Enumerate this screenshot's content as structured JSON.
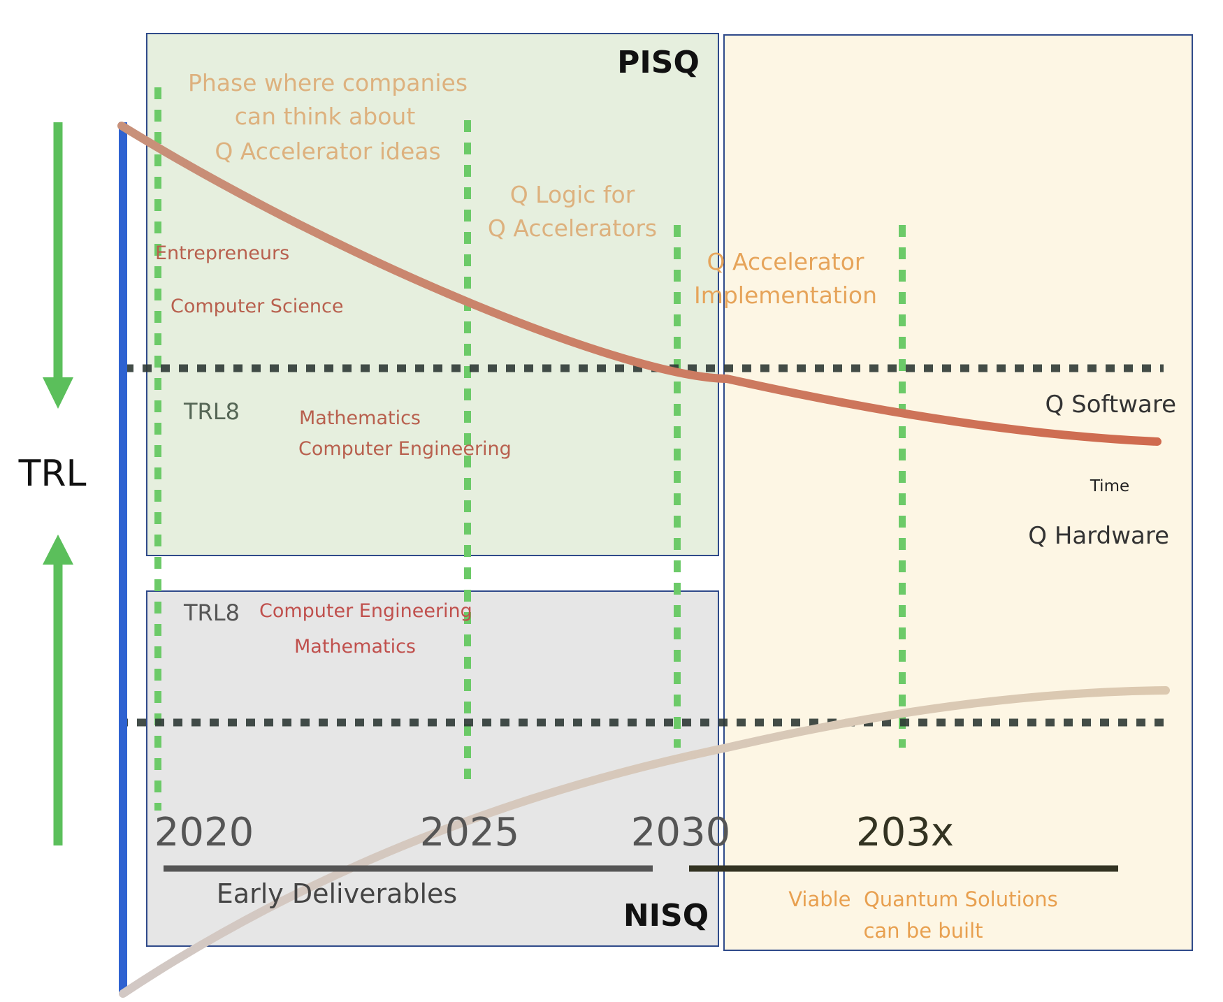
{
  "axis": {
    "label": "TRL",
    "time_label": "Time"
  },
  "regions": {
    "pisq": {
      "label": "PISQ",
      "fill": "#e6efde",
      "stroke": "#2f4a8a"
    },
    "nisq": {
      "label": "NISQ",
      "fill": "#e6e6e6",
      "stroke": "#2f4a8a"
    },
    "future": {
      "fill": "#fdf6e4",
      "stroke": "#2f4a8a"
    }
  },
  "curves": {
    "software": {
      "label": "Q Software",
      "color_start": "#c8917a",
      "color_end": "#cf6a4e"
    },
    "hardware": {
      "label": "Q Hardware",
      "color_start": "#d2c8c4",
      "color_end": "#dcc9b0"
    }
  },
  "phases": {
    "ideas": "Phase where companies can think about Q Accelerator ideas",
    "ideas_lines": [
      "Phase where companies",
      "can think about",
      "Q Accelerator ideas"
    ],
    "logic_lines": [
      "Q Logic for",
      "Q Accelerators"
    ],
    "implementation_lines": [
      "Q Accelerator",
      "Implementation"
    ]
  },
  "disciplines": {
    "top": {
      "entrepreneurs": "Entrepreneurs",
      "cs": "Computer Science",
      "math": "Mathematics",
      "ce": "Computer Engineering"
    },
    "bottom": {
      "ce": "Computer Engineering",
      "math": "Mathematics"
    }
  },
  "trl_marks": {
    "top": "TRL8",
    "bottom": "TRL8"
  },
  "years": [
    "2020",
    "2025",
    "2030",
    "203x"
  ],
  "deliverables": {
    "early": "Early Deliverables",
    "viable_line1": "Viable  Quantum Solutions",
    "viable_line2": "can be built"
  },
  "colors": {
    "axis_blue": "#2e62d1",
    "arrow_green": "#5bbf5b",
    "dash_green": "#6cca68",
    "phase_text": "#ddb17e",
    "phase_text_impl": "#e6a45a",
    "discipline_text": "#b8604e",
    "discipline_text_bottom": "#c0504d",
    "viable_text": "#e8a050",
    "dark_text": "#333333"
  }
}
